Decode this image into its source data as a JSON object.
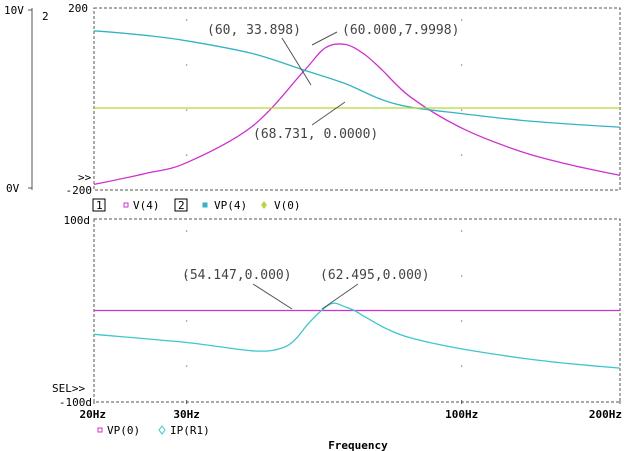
{
  "colors": {
    "v4": "#cc33cc",
    "vp4": "#33b3c3",
    "v0": "#b6d63a",
    "ip_r1": "#3ec6cc",
    "frame": "#555555",
    "annotation": "#555555"
  },
  "top_plot": {
    "left_axis": {
      "top": "10V",
      "bottom": "0V"
    },
    "right_axis": {
      "top": "200",
      "bottom": "-200"
    },
    "axis_index": "2",
    "left_marker": ">>",
    "legend": {
      "idx1": "1",
      "idx2": "2",
      "v4": "V(4)",
      "vp4": "VP(4)",
      "v0": "V(0)"
    }
  },
  "bottom_plot": {
    "y_top": "100d",
    "y_bottom": "-100d",
    "sel_marker": "SEL>>",
    "legend": {
      "vp0": "VP(0)",
      "ip_r1": "IP(R1)"
    }
  },
  "x_axis": {
    "ticks": [
      "20Hz",
      "30Hz",
      "100Hz",
      "200Hz"
    ],
    "label": "Frequency"
  },
  "annotations": {
    "a1": "(60, 33.898)",
    "a2": "(60.000,7.9998)",
    "a3": "(68.731, 0.0000)",
    "a4": "(54.147,0.000)",
    "a5": "(62.495,0.000)"
  },
  "chart_data": [
    {
      "type": "line",
      "xscale": "log",
      "xlim": [
        20,
        200
      ],
      "ylim_left": [
        0,
        10
      ],
      "ylim_right": [
        -200,
        200
      ],
      "series": [
        {
          "name": "V(4)",
          "axis": "left",
          "x": [
            20,
            25,
            30,
            40,
            50,
            55,
            60,
            65,
            70,
            80,
            100,
            130,
            160,
            200
          ],
          "y": [
            0.3,
            0.9,
            1.5,
            3.5,
            6.5,
            7.8,
            8.0,
            7.5,
            6.7,
            5.1,
            3.4,
            2.1,
            1.4,
            0.8
          ]
        },
        {
          "name": "VP(4)",
          "axis": "right",
          "x": [
            20,
            25,
            30,
            40,
            50,
            60,
            70,
            80,
            100,
            130,
            160,
            200
          ],
          "y": [
            150,
            140,
            128,
            100,
            64,
            34,
            0,
            -18,
            -32,
            -47,
            -55,
            -62
          ]
        },
        {
          "name": "V(0)",
          "axis": "left",
          "x": [
            20,
            200
          ],
          "y": [
            0,
            0
          ]
        }
      ],
      "annotations": [
        {
          "text": "(60, 33.898)",
          "x": 60,
          "y": 33.898
        },
        {
          "text": "(60.000,7.9998)",
          "x": 60,
          "y": 7.9998
        },
        {
          "text": "(68.731, 0.0000)",
          "x": 68.731,
          "y": 0
        }
      ]
    },
    {
      "type": "line",
      "xscale": "log",
      "xlim": [
        20,
        200
      ],
      "ylim": [
        -100,
        100
      ],
      "series": [
        {
          "name": "VP(0)",
          "x": [
            20,
            200
          ],
          "y": [
            0,
            0
          ]
        },
        {
          "name": "IP(R1)",
          "x": [
            20,
            30,
            40,
            45,
            48,
            51,
            54.147,
            57,
            60,
            62.495,
            66,
            72,
            80,
            100,
            130,
            160,
            200
          ],
          "y": [
            -26,
            -35,
            -44,
            -42,
            -33,
            -15,
            0,
            8,
            4,
            0,
            -8,
            -20,
            -30,
            -42,
            -52,
            -58,
            -63
          ]
        }
      ],
      "annotations": [
        {
          "text": "(54.147,0.000)",
          "x": 54.147,
          "y": 0
        },
        {
          "text": "(62.495,0.000)",
          "x": 62.495,
          "y": 0
        }
      ]
    }
  ]
}
